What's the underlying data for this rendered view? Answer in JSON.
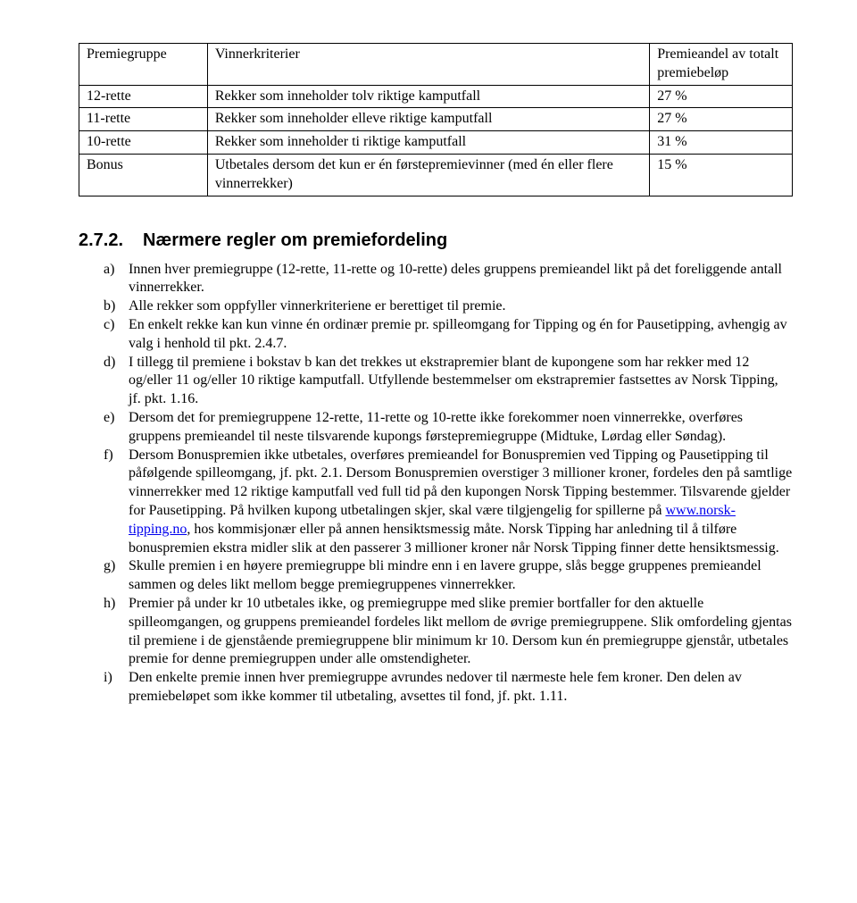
{
  "table": {
    "headers": [
      "Premiegruppe",
      "Vinnerkriterier",
      "Premieandel av totalt premiebeløp"
    ],
    "rows": [
      [
        "12-rette",
        "Rekker som inneholder tolv riktige kamputfall",
        "27 %"
      ],
      [
        "11-rette",
        "Rekker som inneholder elleve riktige kamputfall",
        "27 %"
      ],
      [
        "10-rette",
        "Rekker som inneholder ti riktige kamputfall",
        "31 %"
      ],
      [
        "Bonus",
        "Utbetales dersom det kun er én førstepremievinner (med én eller flere vinnerrekker)",
        "15 %"
      ]
    ]
  },
  "section": {
    "number": "2.7.2.",
    "title": "Nærmere regler om premiefordeling"
  },
  "items": {
    "a": "Innen hver premiegruppe (12-rette, 11-rette og 10-rette) deles gruppens premieandel likt på det foreliggende antall vinnerrekker.",
    "b": "Alle rekker som oppfyller vinnerkriteriene er berettiget til premie.",
    "c": "En enkelt rekke kan kun vinne én ordinær premie pr. spilleomgang for Tipping og én for Pausetipping, avhengig av valg i henhold til pkt. 2.4.7.",
    "d": "I tillegg til premiene i bokstav b kan det trekkes ut ekstrapremier blant de kupongene som har rekker med 12 og/eller 11 og/eller 10 riktige kamputfall. Utfyllende bestemmelser om ekstrapremier fastsettes av Norsk Tipping, jf. pkt. 1.16.",
    "e": "Dersom det for premiegruppene 12-rette, 11-rette og 10-rette ikke forekommer noen vinnerrekke, overføres gruppens premieandel til neste tilsvarende kupongs førstepremiegruppe (Midtuke, Lørdag eller Søndag).",
    "f_pre": "Dersom Bonuspremien ikke utbetales, overføres premieandel for Bonuspremien ved Tipping og Pausetipping til påfølgende spilleomgang, jf. pkt. 2.1. Dersom Bonuspremien overstiger 3 millioner kroner, fordeles den på samtlige vinnerrekker med 12 riktige kamputfall ved full tid på den kupongen Norsk Tipping bestemmer. Tilsvarende gjelder for Pausetipping. På hvilken kupong utbetalingen skjer, skal være tilgjengelig for spillerne på ",
    "f_link": "www.norsk-tipping.no",
    "f_post": ", hos kommisjonær eller på annen hensiktsmessig måte. Norsk Tipping har anledning til å tilføre bonuspremien ekstra midler slik at den passerer 3 millioner kroner når Norsk Tipping finner dette hensiktsmessig.",
    "g": "Skulle premien i en høyere premiegruppe bli mindre enn i en lavere gruppe, slås begge gruppenes premieandel sammen og deles likt mellom begge premiegruppenes vinnerrekker.",
    "h": "Premier på under kr 10 utbetales ikke, og premiegruppe med slike premier bortfaller for den aktuelle spilleomgangen, og gruppens premieandel fordeles likt mellom de øvrige premiegruppene. Slik omfordeling gjentas til premiene i de gjenstående premiegruppene blir minimum kr 10. Dersom kun én premiegruppe gjenstår, utbetales premie for denne premiegruppen under alle omstendigheter.",
    "i": "Den enkelte premie innen hver premiegruppe avrundes nedover til nærmeste hele fem kroner. Den delen av premiebeløpet som ikke kommer til utbetaling, avsettes til fond, jf. pkt. 1.11."
  },
  "markers": {
    "a": "a)",
    "b": "b)",
    "c": "c)",
    "d": "d)",
    "e": "e)",
    "f": "f)",
    "g": "g)",
    "h": "h)",
    "i": "i)"
  }
}
